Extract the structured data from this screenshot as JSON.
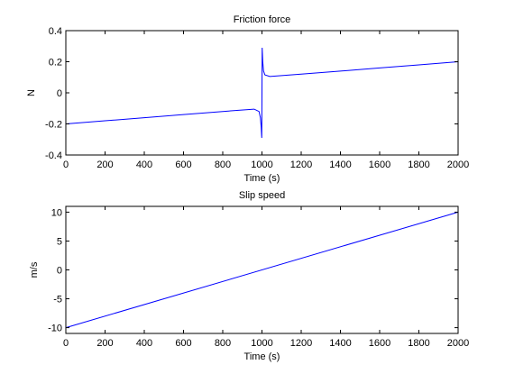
{
  "chart_data": [
    {
      "type": "line",
      "title": "Friction force",
      "xlabel": "Time (s)",
      "ylabel": "N",
      "xlim": [
        0,
        2000
      ],
      "ylim": [
        -0.4,
        0.4
      ],
      "xticks": [
        "0",
        "200",
        "400",
        "600",
        "800",
        "1000",
        "1200",
        "1400",
        "1600",
        "1800",
        "2000"
      ],
      "yticks": [
        "-0.4",
        "-0.2",
        "0",
        "0.2",
        "0.4"
      ],
      "xtick_values": [
        0,
        200,
        400,
        600,
        800,
        1000,
        1200,
        1400,
        1600,
        1800,
        2000
      ],
      "ytick_values": [
        -0.4,
        -0.2,
        0,
        0.2,
        0.4
      ],
      "grid": false,
      "series": [
        {
          "color": "#0000ff",
          "x": [
            0,
            200,
            400,
            600,
            800,
            960,
            985,
            992,
            996,
            998,
            999,
            1000,
            1001,
            1002,
            1004,
            1008,
            1015,
            1040,
            1200,
            1400,
            1600,
            1800,
            2000
          ],
          "y": [
            -0.2,
            -0.18,
            -0.16,
            -0.14,
            -0.12,
            -0.105,
            -0.12,
            -0.16,
            -0.22,
            -0.27,
            -0.29,
            0.0,
            0.29,
            0.26,
            0.2,
            0.14,
            0.115,
            0.105,
            0.12,
            0.14,
            0.16,
            0.18,
            0.2
          ]
        }
      ]
    },
    {
      "type": "line",
      "title": "Slip speed",
      "xlabel": "Time (s)",
      "ylabel": "m/s",
      "xlim": [
        0,
        2000
      ],
      "ylim": [
        -11,
        11
      ],
      "xticks": [
        "0",
        "200",
        "400",
        "600",
        "800",
        "1000",
        "1200",
        "1400",
        "1600",
        "1800",
        "2000"
      ],
      "yticks": [
        "-10",
        "-5",
        "0",
        "5",
        "10"
      ],
      "xtick_values": [
        0,
        200,
        400,
        600,
        800,
        1000,
        1200,
        1400,
        1600,
        1800,
        2000
      ],
      "ytick_values": [
        -10,
        -5,
        0,
        5,
        10
      ],
      "grid": false,
      "series": [
        {
          "color": "#0000ff",
          "x": [
            0,
            2000
          ],
          "y": [
            -10,
            10
          ]
        }
      ]
    }
  ]
}
